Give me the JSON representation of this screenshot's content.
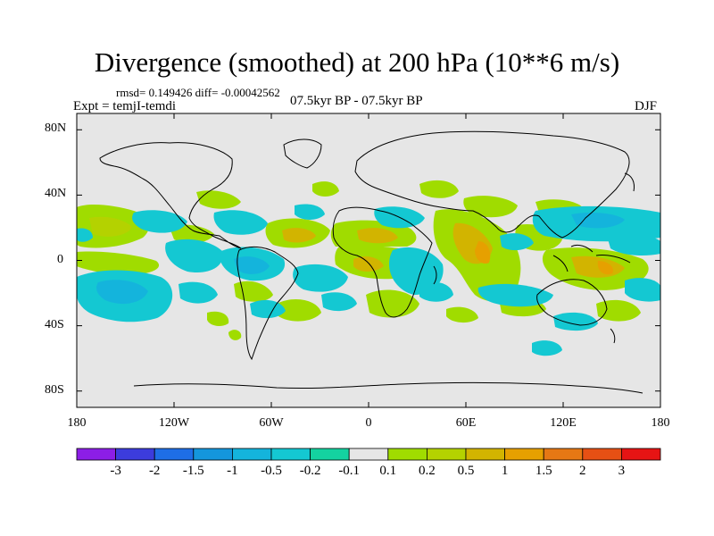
{
  "title": "Divergence (smoothed) at 200 hPa (10**6 m/s)",
  "stats": "rmsd= 0.149426 diff= -0.00042562",
  "experiment": "Expt = temjI-temdi",
  "period": "07.5kyr BP - 07.5kyr BP",
  "season": "DJF",
  "map": {
    "projection": "cylindrical equidistant",
    "lon_range": [
      -180,
      180
    ],
    "lat_range": [
      -90,
      90
    ],
    "lat_ticks": [
      "80N",
      "40N",
      "0",
      "40S",
      "80S"
    ],
    "lon_ticks": [
      "180",
      "120W",
      "60W",
      "0",
      "60E",
      "120E",
      "180"
    ],
    "land_color": "#e6e6e6"
  },
  "colorbar": {
    "colors": [
      "#8c1ee6",
      "#3c3cdc",
      "#1e6ee6",
      "#1496dc",
      "#14b4dc",
      "#14c8d2",
      "#14d2a0",
      "#e6e6e6",
      "#a0dc00",
      "#b4d200",
      "#d2b400",
      "#e6a000",
      "#e67814",
      "#e65014",
      "#e61414"
    ],
    "labels": [
      "-3",
      "-2",
      "-1.5",
      "-1",
      "-0.5",
      "-0.2",
      "-0.1",
      "0.1",
      "0.2",
      "0.5",
      "1",
      "1.5",
      "2",
      "3"
    ]
  }
}
